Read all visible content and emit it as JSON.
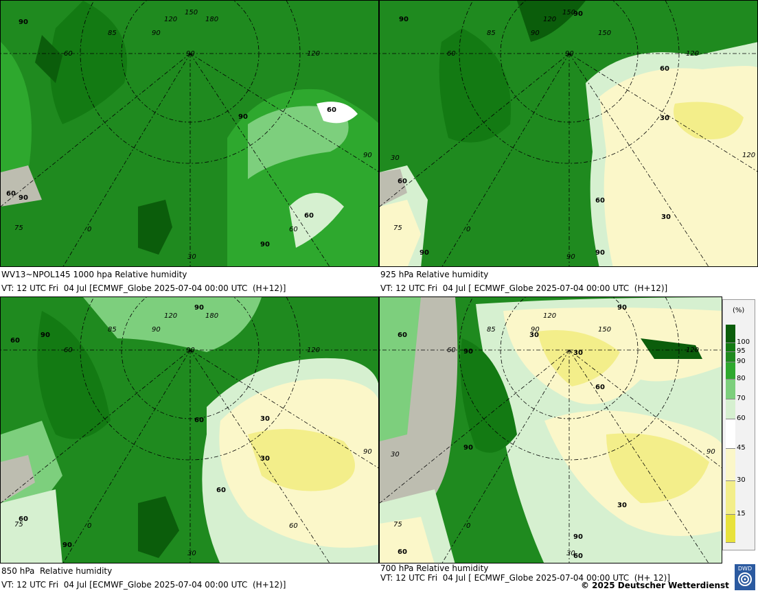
{
  "panels": [
    {
      "caption_line1": "WV13~NPOL145 1000 hpa Relative humidity",
      "caption_line2": "VT: 12 UTC Fri  04 Jul [ECMWF_Globe 2025-07-04 00:00 UTC  (H+12)]",
      "contour_labels": [
        "90",
        "90",
        "60",
        "90",
        "60",
        "60",
        "90"
      ],
      "grid_labels": [
        "120",
        "150",
        "180",
        "85",
        "90",
        "90",
        "120",
        "60",
        "0",
        "75",
        "30",
        "60",
        "90"
      ]
    },
    {
      "caption_line1": "925 hPa Relative humidity",
      "caption_line2": "VT: 12 UTC Fri  04 Jul [ ECMWF_Globe 2025-07-04 00:00 UTC  (H+12)]",
      "contour_labels": [
        "90",
        "90",
        "60",
        "30",
        "60",
        "60",
        "30",
        "90",
        "90"
      ],
      "grid_labels": [
        "120",
        "150",
        "90",
        "85",
        "90",
        "120",
        "150",
        "120",
        "60",
        "30",
        "0",
        "75",
        "90"
      ]
    },
    {
      "caption_line1": "850 hPa  Relative humidity",
      "caption_line2": "VT: 12 UTC Fri  04 Jul [ECMWF_Globe 2025-07-04 00:00 UTC  (H+12)]",
      "contour_labels": [
        "90",
        "60",
        "90",
        "60",
        "30",
        "30",
        "60",
        "60",
        "90"
      ],
      "grid_labels": [
        "120",
        "180",
        "85",
        "90",
        "90",
        "120",
        "60",
        "90",
        "0",
        "75",
        "30",
        "60"
      ]
    },
    {
      "caption_line1": "700 hPa Relative humidity",
      "caption_line2": "VT: 12 UTC Fri  04 Jul [ ECMWF_Globe 2025-07-04 00:00 UTC  (H+ 12)]",
      "contour_labels": [
        "60",
        "90",
        "30",
        "30",
        "90",
        "60",
        "90",
        "30",
        "60",
        "90",
        "60"
      ],
      "grid_labels": [
        "120",
        "150",
        "85",
        "90",
        "120",
        "60",
        "30",
        "0",
        "75",
        "90",
        "30"
      ]
    }
  ],
  "legend": {
    "unit": "(%)",
    "ticks": [
      "100",
      "95",
      "90",
      "80",
      "70",
      "60",
      "45",
      "30",
      "15"
    ],
    "colors": [
      "#0b5d0b",
      "#137a13",
      "#1f8a1f",
      "#2ea82e",
      "#7dcf7d",
      "#d6f0d0",
      "#ffffff",
      "#fbf7c9",
      "#f3ee8a",
      "#e8e23c"
    ]
  },
  "copyright": "© 2025 Deutscher Wetterdienst",
  "logo_text": "DWD"
}
